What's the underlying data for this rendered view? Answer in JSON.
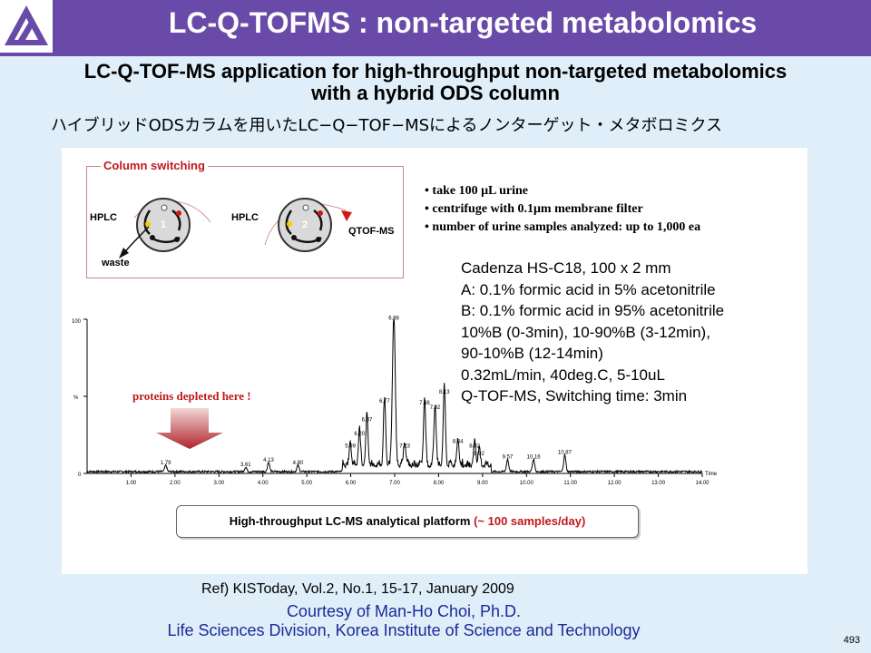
{
  "header": {
    "title": "LC-Q-TOFMS : non-targeted metabolomics"
  },
  "subtitle": {
    "line1": "LC-Q-TOF-MS application for high-throughput non-targeted metabolomics",
    "line2": "with a hybrid ODS column"
  },
  "japanese_title": "ハイブリッドODSカラムを用いたLC−Q−TOF−MSによるノンターゲット・メタボロミクス",
  "column_switching": {
    "title": "Column switching",
    "hplc1": "HPLC",
    "hplc2": "HPLC",
    "waste": "waste",
    "qtof": "QTOF-MS",
    "pos1": "1",
    "pos2": "2"
  },
  "bullets": [
    "• take 100 μL urine",
    "• centrifuge with 0.1μm membrane filter",
    "• number of urine samples analyzed: up to 1,000 ea"
  ],
  "conditions": [
    "Cadenza HS-C18, 100 x 2 mm",
    "A: 0.1% formic acid in 5% acetonitrile",
    "B: 0.1% formic acid in 95% acetonitrile",
    "10%B (0-3min), 10-90%B (3-12min),",
    "90-10%B (12-14min)",
    "0.32mL/min, 40deg.C, 5-10uL",
    "Q-TOF-MS, Switching time: 3min"
  ],
  "annotation": "proteins depleted here !",
  "platform": {
    "text": "High-throughput LC-MS analytical platform ",
    "highlight": "(~ 100 samples/day)"
  },
  "reference": "Ref)  KISToday, Vol.2, No.1, 15-17, January 2009",
  "credit": {
    "line1": "Courtesy of Man-Ho Choi, Ph.D.",
    "line2": "Life Sciences Division, Korea Institute of Science and Technology"
  },
  "page_number": "493",
  "colors": {
    "header": "#6a4aa8",
    "accent_red": "#c0181e",
    "credit_blue": "#1b2a9c",
    "background": "#dfeef8"
  },
  "chart_data": {
    "type": "line",
    "xlim": [
      0,
      14
    ],
    "ylim": [
      0,
      100
    ],
    "x_ticks": [
      "1.00",
      "2.00",
      "3.00",
      "4.00",
      "5.00",
      "6.00",
      "7.00",
      "8.00",
      "9.00",
      "10.00",
      "11.00",
      "12.00",
      "13.00",
      "14.00"
    ],
    "y_ticks": [
      "0",
      "%",
      "100"
    ],
    "x_unit": "Time",
    "peaks": [
      {
        "x": 1.79,
        "y": 4,
        "label": "1.79"
      },
      {
        "x": 3.61,
        "y": 3,
        "label": "3.61"
      },
      {
        "x": 4.13,
        "y": 6,
        "label": "4.13"
      },
      {
        "x": 4.8,
        "y": 4,
        "label": "4.80"
      },
      {
        "x": 5.99,
        "y": 15,
        "label": "5.99"
      },
      {
        "x": 6.2,
        "y": 23,
        "label": "6.20"
      },
      {
        "x": 6.37,
        "y": 32,
        "label": "6.37"
      },
      {
        "x": 6.77,
        "y": 44,
        "label": "6.77"
      },
      {
        "x": 6.98,
        "y": 98,
        "label": "6.98"
      },
      {
        "x": 7.23,
        "y": 15,
        "label": "7.23"
      },
      {
        "x": 7.68,
        "y": 43,
        "label": "7.68"
      },
      {
        "x": 7.92,
        "y": 40,
        "label": "7.92"
      },
      {
        "x": 8.13,
        "y": 50,
        "label": "8.13"
      },
      {
        "x": 8.44,
        "y": 18,
        "label": "8.44"
      },
      {
        "x": 8.82,
        "y": 15,
        "label": "8.82"
      },
      {
        "x": 8.92,
        "y": 10,
        "label": "8.92"
      },
      {
        "x": 9.57,
        "y": 8,
        "label": "9.57"
      },
      {
        "x": 10.16,
        "y": 8,
        "label": "10.16"
      },
      {
        "x": 10.87,
        "y": 11,
        "label": "10.87"
      }
    ]
  }
}
